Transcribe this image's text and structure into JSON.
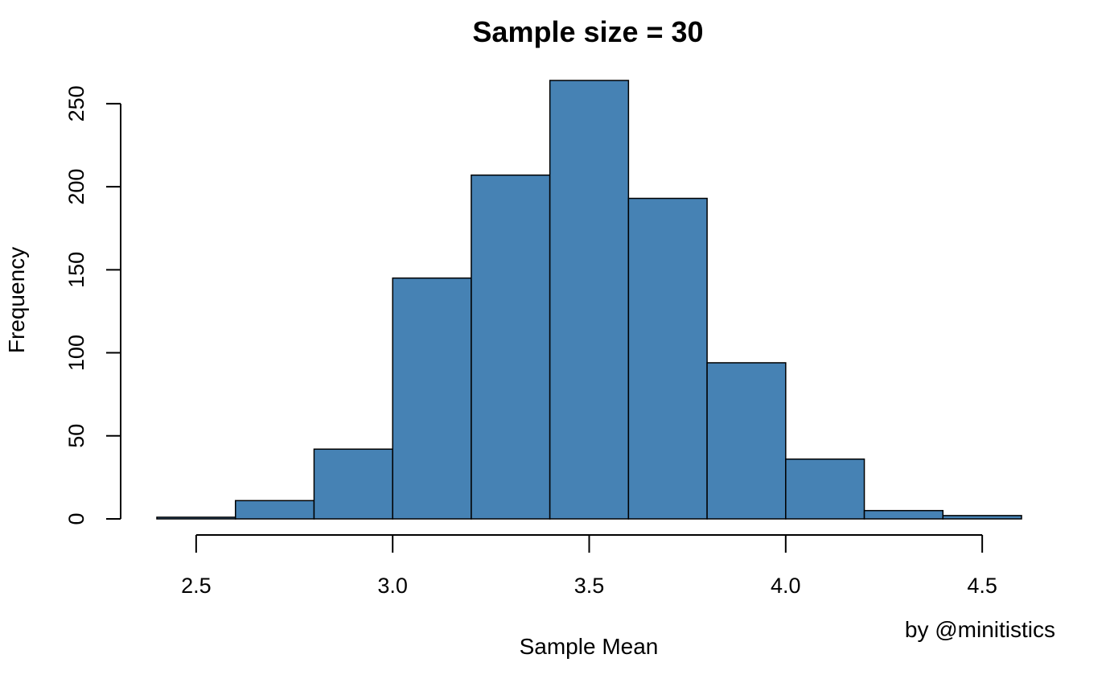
{
  "chart_data": {
    "type": "bar",
    "title": "Sample size = 30",
    "xlabel": "Sample Mean",
    "ylabel": "Frequency",
    "credit": "by @minitistics",
    "bin_edges": [
      2.4,
      2.6,
      2.8,
      3.0,
      3.2,
      3.4,
      3.6,
      3.8,
      4.0,
      4.2,
      4.4,
      4.6
    ],
    "values": [
      1,
      11,
      42,
      145,
      207,
      264,
      193,
      94,
      36,
      5,
      2
    ],
    "xlim": [
      2.4,
      4.6
    ],
    "ylim": [
      0,
      264
    ],
    "x_ticks": [
      2.5,
      3.0,
      3.5,
      4.0,
      4.5
    ],
    "x_tick_labels": [
      "2.5",
      "3.0",
      "3.5",
      "4.0",
      "4.5"
    ],
    "y_ticks": [
      0,
      50,
      100,
      150,
      200,
      250
    ],
    "y_tick_labels": [
      "0",
      "50",
      "100",
      "150",
      "200",
      "250"
    ],
    "bar_color": "#4682B4",
    "bar_edge_color": "#000000",
    "grid": false,
    "legend": "none"
  }
}
